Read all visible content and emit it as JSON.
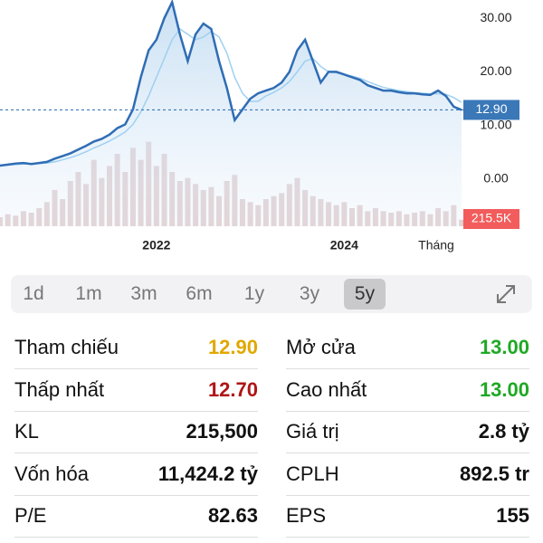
{
  "chart_data": {
    "type": "line",
    "categories": [
      null,
      null,
      null,
      null,
      null,
      null,
      null,
      null,
      null,
      null,
      null,
      null,
      null,
      null,
      null,
      null,
      null,
      null,
      null,
      null,
      "2022",
      null,
      null,
      null,
      null,
      null,
      null,
      null,
      null,
      null,
      null,
      null,
      null,
      null,
      null,
      null,
      null,
      null,
      null,
      null,
      null,
      null,
      null,
      null,
      "2024",
      null,
      null,
      null,
      null,
      null,
      null,
      null,
      null,
      null,
      null,
      null,
      null,
      null,
      null,
      null
    ],
    "x_label": "Tháng",
    "series": [
      {
        "color": "#2f6db5",
        "values": [
          2.5,
          2.7,
          2.9,
          3.0,
          2.8,
          3.0,
          3.2,
          3.8,
          4.3,
          4.8,
          5.5,
          6.2,
          7.0,
          7.5,
          8.3,
          9.5,
          10.2,
          13,
          19,
          24,
          26,
          30,
          33,
          27,
          22,
          27,
          29,
          28,
          22,
          17,
          11,
          13,
          15,
          16,
          16.5,
          17,
          18,
          20,
          24,
          26,
          22,
          18,
          20,
          20,
          19.5,
          19,
          18.5,
          17.5,
          17,
          16.5,
          16.5,
          16.2,
          16,
          16,
          15.8,
          15.7,
          16.5,
          15.5,
          13.5,
          12.9
        ]
      },
      {
        "color": "#9fd0f0",
        "values": [
          2.6,
          2.6,
          2.7,
          2.8,
          2.9,
          2.9,
          3.0,
          3.2,
          3.6,
          4.0,
          4.5,
          5.1,
          5.8,
          6.4,
          7.1,
          7.9,
          8.8,
          10.2,
          12.5,
          15.5,
          19,
          22.5,
          26,
          28,
          27,
          26,
          26.5,
          27.5,
          26.5,
          23.5,
          19,
          16,
          14.5,
          14.5,
          15.5,
          16.2,
          17,
          18.2,
          20,
          22,
          22.5,
          21,
          20,
          19.8,
          19.5,
          19.2,
          18.8,
          18.2,
          17.6,
          17.1,
          16.8,
          16.5,
          16.3,
          16.1,
          16,
          15.9,
          15.9,
          15.8,
          15.2,
          14.3
        ]
      }
    ],
    "ylim": [
      -8.8,
      33.4
    ],
    "yticks": [
      {
        "value": 30,
        "label": "30.00"
      },
      {
        "value": 20,
        "label": "20.00"
      },
      {
        "value": 10,
        "label": "10.00"
      },
      {
        "value": 0,
        "label": "0.00"
      }
    ],
    "last_price": {
      "value": 12.9,
      "label": "12.90",
      "color": "#3a78b8"
    },
    "volume": [
      300000,
      400000,
      350000,
      500000,
      450000,
      600000,
      800000,
      1200000,
      900000,
      1500000,
      1800000,
      1400000,
      2200000,
      1600000,
      2000000,
      2400000,
      1800000,
      2600000,
      2200000,
      2800000,
      2000000,
      2400000,
      1800000,
      1500000,
      1600000,
      1400000,
      1200000,
      1300000,
      1000000,
      1500000,
      1700000,
      900000,
      800000,
      700000,
      900000,
      1000000,
      1100000,
      1400000,
      1600000,
      1200000,
      1000000,
      900000,
      800000,
      700000,
      800000,
      600000,
      700000,
      500000,
      600000,
      500000,
      450000,
      500000,
      400000,
      450000,
      500000,
      400000,
      600000,
      500000,
      700000,
      215500
    ],
    "volume_color": "#c9a6a6",
    "vlim": [
      0,
      3000000
    ],
    "last_volume": {
      "value": 215500,
      "label": "215.5K",
      "color": "#f25c5c"
    }
  },
  "ranges": {
    "items": [
      "1d",
      "1m",
      "3m",
      "6m",
      "1y",
      "3y",
      "5y"
    ],
    "selected": 6
  },
  "stats": [
    [
      {
        "label": "Tham chiếu",
        "value": "12.90",
        "color": "#e0a800"
      },
      {
        "label": "Mở cửa",
        "value": "13.00",
        "color": "#1fa824"
      }
    ],
    [
      {
        "label": "Thấp nhất",
        "value": "12.70",
        "color": "#b01515"
      },
      {
        "label": "Cao nhất",
        "value": "13.00",
        "color": "#1fa824"
      }
    ],
    [
      {
        "label": "KL",
        "value": "215,500",
        "color": "#111111"
      },
      {
        "label": "Giá trị",
        "value": "2.8 tỷ",
        "color": "#111111"
      }
    ],
    [
      {
        "label": "Vốn hóa",
        "value": "11,424.2 tỷ",
        "color": "#111111"
      },
      {
        "label": "CPLH",
        "value": "892.5 tr",
        "color": "#111111"
      }
    ],
    [
      {
        "label": "P/E",
        "value": "82.63",
        "color": "#111111"
      },
      {
        "label": "EPS",
        "value": "155",
        "color": "#111111"
      }
    ]
  ]
}
